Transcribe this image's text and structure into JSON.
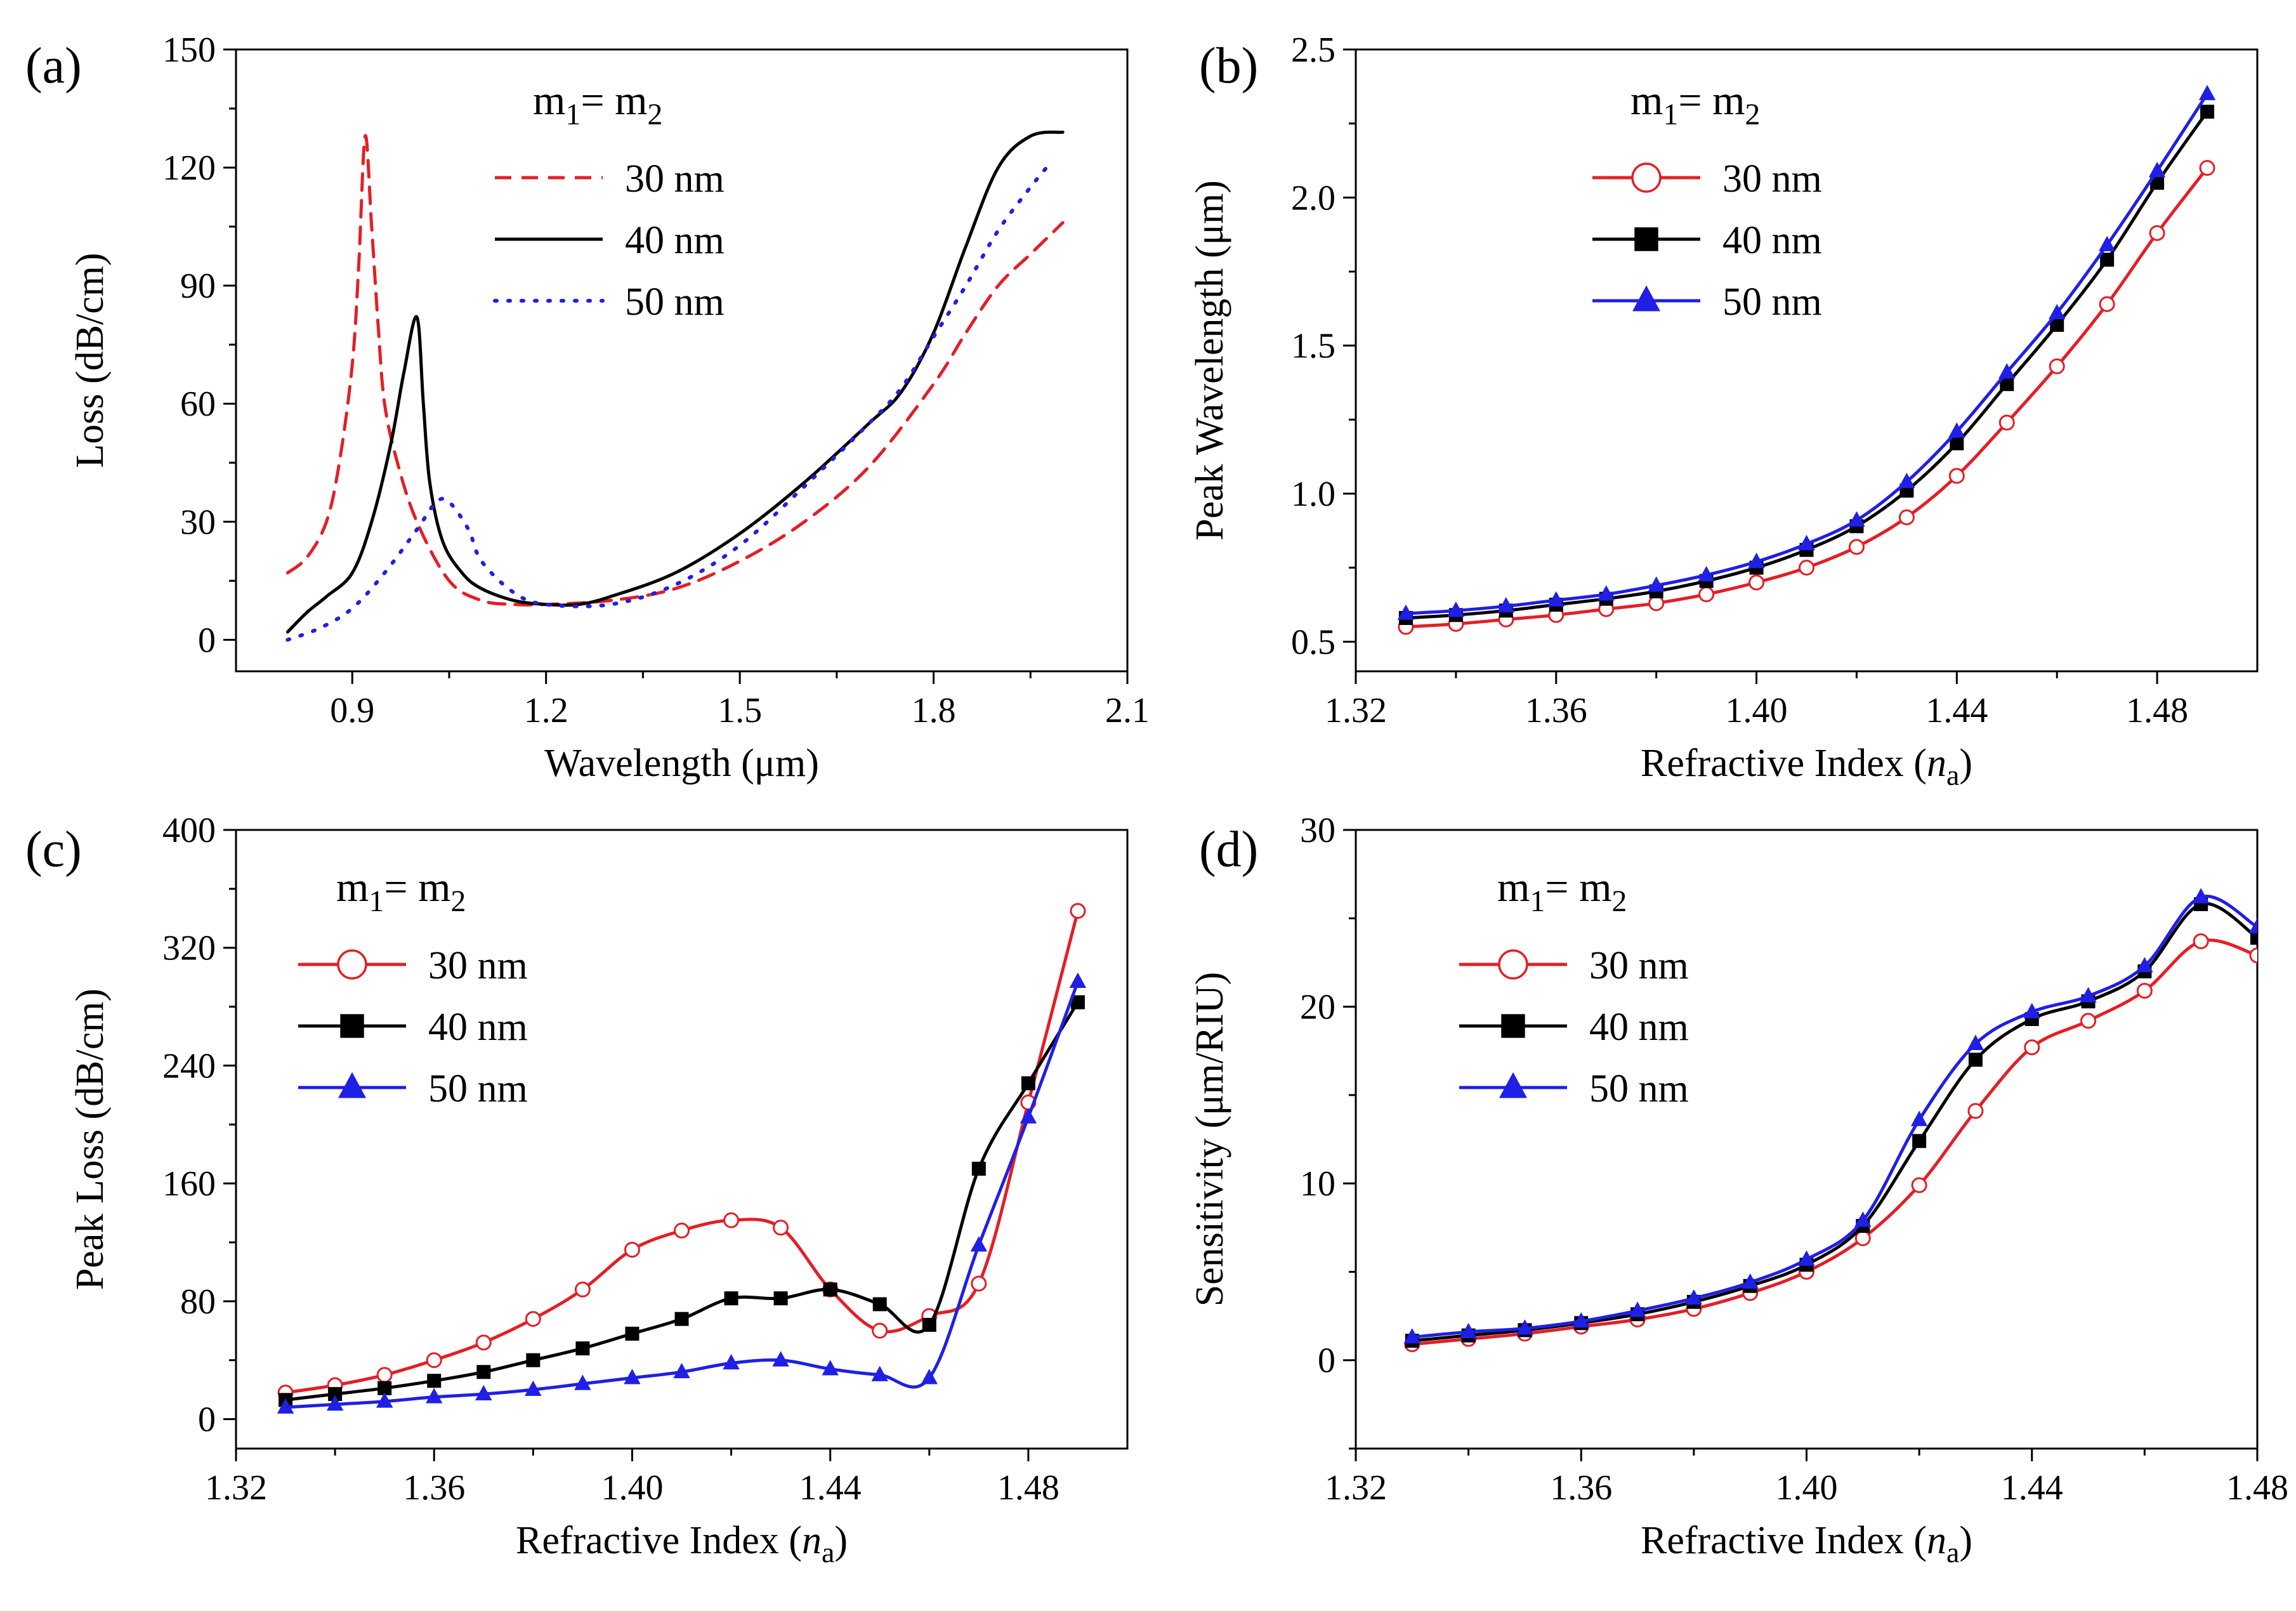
{
  "colors": {
    "red": "#e41e26",
    "black": "#000000",
    "blue": "#1f1fe6",
    "axis": "#000000"
  },
  "chart_data": [
    {
      "type": "line",
      "panel_label": "(a)",
      "xlabel": "Wavelength (μm)",
      "ylabel": "Loss (dB/cm)",
      "xlim": [
        0.72,
        2.1
      ],
      "ylim": [
        -8,
        150
      ],
      "xticks": [
        "0.9",
        "1.2",
        "1.5",
        "1.8",
        "2.1"
      ],
      "yticks": [
        "0",
        "30",
        "60",
        "90",
        "120",
        "150"
      ],
      "legend_title": "m1= m2",
      "legend_position": "top-center",
      "series": [
        {
          "name": "30 nm",
          "style": "dashed",
          "marker": "none",
          "color": "red",
          "x": [
            0.8,
            0.83,
            0.86,
            0.88,
            0.9,
            0.91,
            0.92,
            0.93,
            0.94,
            0.95,
            0.97,
            1.0,
            1.05,
            1.1,
            1.15,
            1.2,
            1.3,
            1.4,
            1.5,
            1.6,
            1.7,
            1.8,
            1.85,
            1.9,
            1.95,
            2.0
          ],
          "y": [
            17,
            21,
            30,
            45,
            70,
            95,
            128,
            105,
            80,
            60,
            45,
            30,
            15,
            10,
            9,
            9,
            10,
            13,
            20,
            30,
            44,
            65,
            78,
            90,
            98,
            106
          ]
        },
        {
          "name": "40 nm",
          "style": "solid",
          "marker": "none",
          "color": "black",
          "x": [
            0.8,
            0.83,
            0.86,
            0.9,
            0.93,
            0.96,
            0.98,
            1.0,
            1.01,
            1.02,
            1.04,
            1.07,
            1.1,
            1.15,
            1.2,
            1.25,
            1.3,
            1.4,
            1.5,
            1.6,
            1.7,
            1.75,
            1.8,
            1.85,
            1.9,
            1.95,
            2.0
          ],
          "y": [
            2,
            7,
            11,
            17,
            30,
            50,
            68,
            82,
            60,
            40,
            25,
            17,
            13,
            10,
            9,
            9,
            11,
            17,
            27,
            40,
            55,
            63,
            78,
            100,
            120,
            128,
            129
          ]
        },
        {
          "name": "50 nm",
          "style": "dotted",
          "marker": "none",
          "color": "blue",
          "x": [
            0.8,
            0.85,
            0.9,
            0.95,
            1.0,
            1.03,
            1.05,
            1.08,
            1.1,
            1.15,
            1.2,
            1.3,
            1.4,
            1.5,
            1.6,
            1.7,
            1.75,
            1.8,
            1.85,
            1.9,
            1.95,
            1.98
          ],
          "y": [
            0,
            3,
            8,
            17,
            28,
            35,
            35,
            28,
            20,
            12,
            9,
            9,
            14,
            24,
            39,
            55,
            64,
            77,
            90,
            104,
            115,
            121
          ]
        }
      ]
    },
    {
      "type": "line",
      "panel_label": "(b)",
      "xlabel": "Refractive Index (",
      "xlabel_italic": "n",
      "xlabel_sub": "a",
      "xlabel_end": ")",
      "ylabel": "Peak Wavelength (μm)",
      "xlim": [
        1.32,
        1.5
      ],
      "ylim": [
        0.4,
        2.5
      ],
      "xticks": [
        "1.32",
        "1.36",
        "1.40",
        "1.44",
        "1.48"
      ],
      "yticks": [
        "0.5",
        "1.0",
        "1.5",
        "2.0",
        "2.5"
      ],
      "legend_title": "m1= m2",
      "legend_position": "top-center",
      "series": [
        {
          "name": "30 nm",
          "marker": "open-circle",
          "color": "red",
          "x": [
            1.33,
            1.34,
            1.35,
            1.36,
            1.37,
            1.38,
            1.39,
            1.4,
            1.41,
            1.42,
            1.43,
            1.44,
            1.45,
            1.46,
            1.47,
            1.48,
            1.49
          ],
          "y": [
            0.55,
            0.56,
            0.575,
            0.59,
            0.61,
            0.63,
            0.66,
            0.7,
            0.75,
            0.82,
            0.92,
            1.06,
            1.24,
            1.43,
            1.64,
            1.88,
            2.1
          ]
        },
        {
          "name": "40 nm",
          "marker": "filled-square",
          "color": "black",
          "x": [
            1.33,
            1.34,
            1.35,
            1.36,
            1.37,
            1.38,
            1.39,
            1.4,
            1.41,
            1.42,
            1.43,
            1.44,
            1.45,
            1.46,
            1.47,
            1.48,
            1.49
          ],
          "y": [
            0.58,
            0.59,
            0.605,
            0.625,
            0.645,
            0.67,
            0.705,
            0.75,
            0.81,
            0.89,
            1.01,
            1.17,
            1.37,
            1.57,
            1.79,
            2.05,
            2.29
          ]
        },
        {
          "name": "50 nm",
          "marker": "filled-triangle",
          "color": "blue",
          "x": [
            1.33,
            1.34,
            1.35,
            1.36,
            1.37,
            1.38,
            1.39,
            1.4,
            1.41,
            1.42,
            1.43,
            1.44,
            1.45,
            1.46,
            1.47,
            1.48,
            1.49
          ],
          "y": [
            0.595,
            0.605,
            0.62,
            0.64,
            0.66,
            0.69,
            0.725,
            0.77,
            0.83,
            0.91,
            1.04,
            1.21,
            1.41,
            1.61,
            1.84,
            2.09,
            2.35
          ]
        }
      ]
    },
    {
      "type": "line",
      "panel_label": "(c)",
      "xlabel": "Refractive Index (",
      "xlabel_italic": "n",
      "xlabel_sub": "a",
      "xlabel_end": ")",
      "ylabel": "Peak Loss (dB/cm)",
      "xlim": [
        1.32,
        1.5
      ],
      "ylim": [
        -20,
        400
      ],
      "xticks": [
        "1.32",
        "1.36",
        "1.40",
        "1.44",
        "1.48"
      ],
      "yticks": [
        "0",
        "80",
        "160",
        "240",
        "320",
        "400"
      ],
      "legend_title": "m1= m2",
      "legend_position": "top-left",
      "series": [
        {
          "name": "30 nm",
          "marker": "open-circle",
          "color": "red",
          "x": [
            1.33,
            1.34,
            1.35,
            1.36,
            1.37,
            1.38,
            1.39,
            1.4,
            1.41,
            1.42,
            1.43,
            1.44,
            1.45,
            1.46,
            1.47,
            1.48,
            1.49
          ],
          "y": [
            18,
            23,
            30,
            40,
            52,
            68,
            88,
            115,
            128,
            135,
            130,
            88,
            60,
            70,
            92,
            215,
            345
          ]
        },
        {
          "name": "40 nm",
          "marker": "filled-square",
          "color": "black",
          "x": [
            1.33,
            1.34,
            1.35,
            1.36,
            1.37,
            1.38,
            1.39,
            1.4,
            1.41,
            1.42,
            1.43,
            1.44,
            1.45,
            1.46,
            1.47,
            1.48,
            1.49
          ],
          "y": [
            13,
            17,
            21,
            26,
            32,
            40,
            48,
            58,
            68,
            82,
            82,
            88,
            78,
            64,
            170,
            228,
            283
          ]
        },
        {
          "name": "50 nm",
          "marker": "filled-triangle",
          "color": "blue",
          "x": [
            1.33,
            1.34,
            1.35,
            1.36,
            1.37,
            1.38,
            1.39,
            1.4,
            1.41,
            1.42,
            1.43,
            1.44,
            1.45,
            1.46,
            1.47,
            1.48,
            1.49
          ],
          "y": [
            8,
            10,
            12,
            15,
            17,
            20,
            24,
            28,
            32,
            38,
            40,
            34,
            30,
            28,
            118,
            205,
            297
          ]
        }
      ]
    },
    {
      "type": "line",
      "panel_label": "(d)",
      "xlabel": "Refractive Index (",
      "xlabel_italic": "n",
      "xlabel_sub": "a",
      "xlabel_end": ")",
      "ylabel": "Sensitivity (μm/RIU)",
      "xlim": [
        1.32,
        1.48
      ],
      "ylim": [
        -5,
        30
      ],
      "xticks": [
        "1.32",
        "1.36",
        "1.40",
        "1.44",
        "1.48"
      ],
      "yticks": [
        "0",
        "10",
        "20",
        "30"
      ],
      "legend_title": "m1= m2",
      "legend_position": "top-left",
      "series": [
        {
          "name": "30 nm",
          "marker": "open-circle",
          "color": "red",
          "x": [
            1.33,
            1.34,
            1.35,
            1.36,
            1.37,
            1.38,
            1.39,
            1.4,
            1.41,
            1.42,
            1.43,
            1.44,
            1.45,
            1.46,
            1.47,
            1.48
          ],
          "y": [
            0.9,
            1.2,
            1.5,
            1.9,
            2.3,
            2.9,
            3.8,
            5.0,
            6.9,
            9.9,
            14.1,
            17.7,
            19.2,
            20.9,
            23.7,
            22.9
          ]
        },
        {
          "name": "40 nm",
          "marker": "filled-square",
          "color": "black",
          "x": [
            1.33,
            1.34,
            1.35,
            1.36,
            1.37,
            1.38,
            1.39,
            1.4,
            1.41,
            1.42,
            1.43,
            1.44,
            1.45,
            1.46,
            1.47,
            1.48
          ],
          "y": [
            1.1,
            1.4,
            1.7,
            2.1,
            2.6,
            3.3,
            4.2,
            5.4,
            7.6,
            12.4,
            17.0,
            19.3,
            20.3,
            22.0,
            25.8,
            23.9
          ]
        },
        {
          "name": "50 nm",
          "marker": "filled-triangle",
          "color": "blue",
          "x": [
            1.33,
            1.34,
            1.35,
            1.36,
            1.37,
            1.38,
            1.39,
            1.4,
            1.41,
            1.42,
            1.43,
            1.44,
            1.45,
            1.46,
            1.47,
            1.48
          ],
          "y": [
            1.3,
            1.6,
            1.8,
            2.2,
            2.8,
            3.5,
            4.4,
            5.7,
            7.9,
            13.6,
            17.9,
            19.7,
            20.6,
            22.3,
            26.2,
            24.5
          ]
        }
      ]
    }
  ]
}
